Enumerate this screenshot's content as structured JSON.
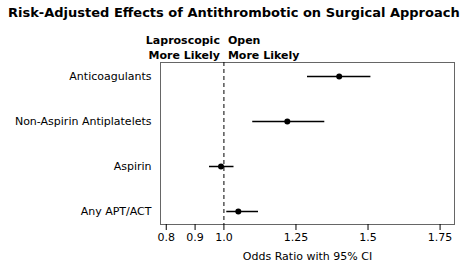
{
  "chart_data": {
    "type": "forest",
    "title": "Risk-Adjusted Effects of Antithrombotic on Surgical Approach",
    "orientation": "horizontal",
    "categories": [
      "Anticoagulants",
      "Non-Aspirin Antiplatelets",
      "Aspirin",
      "Any APT/ACT"
    ],
    "values": [
      1.4,
      1.22,
      0.99,
      1.05
    ],
    "ci_low": [
      1.29,
      1.1,
      0.95,
      1.01
    ],
    "ci_high": [
      1.51,
      1.35,
      1.035,
      1.12
    ],
    "xlim": [
      0.78,
      1.8
    ],
    "xticks": [
      0.8,
      0.9,
      {
        "value": 1.0,
        "label": "1.0"
      },
      1.25,
      1.5,
      1.75
    ],
    "xlabel": "Odds Ratio with 95% CI",
    "reference_line": 1.0,
    "header_left": [
      "Laproscopic",
      "More Likely"
    ],
    "header_right": [
      "Open",
      "More Likely"
    ],
    "grid": false
  }
}
